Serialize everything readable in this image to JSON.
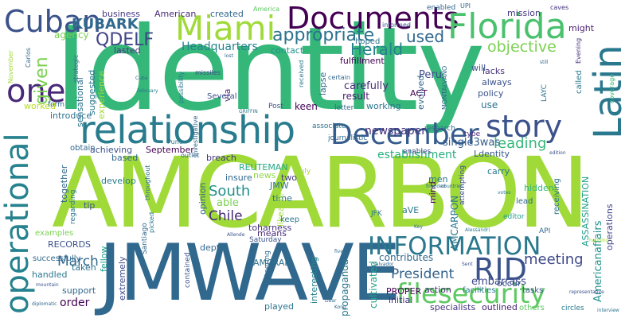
{
  "words": [
    {
      "text": "Identity",
      "color": "#35b779"
    },
    {
      "text": "AMCARBON",
      "color": "#a0da39"
    },
    {
      "text": "JMWAVE",
      "color": "#31688e"
    },
    {
      "text": "relationship",
      "color": "#287c8e"
    },
    {
      "text": "Documents",
      "color": "#440154"
    },
    {
      "text": "Florida",
      "color": "#4ac16d"
    },
    {
      "text": "Miami",
      "color": "#a0da39"
    },
    {
      "text": "Latin",
      "color": "#2a788e"
    },
    {
      "text": "December",
      "color": "#365c8d"
    },
    {
      "text": "story",
      "color": "#3b528b"
    },
    {
      "text": "operational",
      "color": "#26828e"
    },
    {
      "text": "INFORMATION",
      "color": "#2a788e"
    },
    {
      "text": "RID",
      "color": "#3b528b"
    },
    {
      "text": "filesecurity",
      "color": "#5ec962"
    },
    {
      "text": "Cuban",
      "color": "#3b528b"
    },
    {
      "text": "one",
      "color": "#482878"
    },
    {
      "text": "KUBARK",
      "color": "#31688e"
    },
    {
      "text": "QDELF",
      "color": "#414487"
    },
    {
      "text": "appropriate",
      "color": "#2c728e"
    },
    {
      "text": "used",
      "color": "#31688e"
    },
    {
      "text": "objective",
      "color": "#7ad151"
    },
    {
      "text": "Headquarters",
      "color": "#26828e"
    },
    {
      "text": "Herald",
      "color": "#26828e"
    },
    {
      "text": "given",
      "color": "#7ad151"
    },
    {
      "text": "South",
      "color": "#21918c"
    },
    {
      "text": "Chile",
      "color": "#482878"
    },
    {
      "text": "March",
      "color": "#31688e"
    },
    {
      "text": "meeting",
      "color": "#3e4989"
    },
    {
      "text": "President",
      "color": "#33638d"
    },
    {
      "text": "newspaper",
      "color": "#46327e"
    },
    {
      "text": "leading",
      "color": "#35b779"
    },
    {
      "text": "Peru",
      "color": "#3e4989"
    },
    {
      "text": "carefully",
      "color": "#472d7b"
    },
    {
      "text": "single3was",
      "color": "#355f8d"
    },
    {
      "text": "establishment",
      "color": "#29af7f"
    },
    {
      "text": "Ldentity",
      "color": "#38598c"
    },
    {
      "text": "AMCARPON",
      "color": "#2a788e"
    },
    {
      "text": "ASSASSINATION",
      "color": "#1f9e89"
    },
    {
      "text": "Americanaffairs",
      "color": "#21918c"
    },
    {
      "text": "operations",
      "color": "#414487"
    },
    {
      "text": "embarrass",
      "color": "#3e4989"
    },
    {
      "text": "contributes",
      "color": "#31688e"
    },
    {
      "text": "cultivated",
      "color": "#20a486"
    },
    {
      "text": "propaganda",
      "color": "#2a788e"
    },
    {
      "text": "REUTEMAN",
      "color": "#22a884"
    },
    {
      "text": "September",
      "color": "#440154"
    },
    {
      "text": "achieving",
      "color": "#3b528b"
    },
    {
      "text": "investigative",
      "color": "#31688e"
    },
    {
      "text": "sensational",
      "color": "#2c728e"
    },
    {
      "text": "suggested",
      "color": "#2a788e"
    },
    {
      "text": "experience",
      "color": "#a0da39"
    },
    {
      "text": "strategic",
      "color": "#31688e"
    },
    {
      "text": "agency",
      "color": "#7ad151"
    },
    {
      "text": "business",
      "color": "#443983"
    },
    {
      "text": "American",
      "color": "#482878"
    },
    {
      "text": "created",
      "color": "#31688e"
    },
    {
      "text": "enabled",
      "color": "#31688e"
    },
    {
      "text": "mission",
      "color": "#443983"
    },
    {
      "text": "caves",
      "color": "#46327e"
    },
    {
      "text": "might",
      "color": "#481f70"
    },
    {
      "text": "lasted",
      "color": "#46327e"
    },
    {
      "text": "contact",
      "color": "#21918c"
    },
    {
      "text": "fulfillment",
      "color": "#440154"
    },
    {
      "text": "hoped",
      "color": "#2c728e"
    },
    {
      "text": "will",
      "color": "#3b528b"
    },
    {
      "text": "worked",
      "color": "#b8de29"
    },
    {
      "text": "form",
      "color": "#31688e"
    },
    {
      "text": "introduce",
      "color": "#2c728e"
    },
    {
      "text": "obtain",
      "color": "#31688e"
    },
    {
      "text": "together",
      "color": "#31688e"
    },
    {
      "text": "regarding",
      "color": "#2a788e"
    },
    {
      "text": "develop",
      "color": "#287c8e"
    },
    {
      "text": "based",
      "color": "#31688e"
    },
    {
      "text": "breach",
      "color": "#46327e"
    },
    {
      "text": "news",
      "color": "#8fd744"
    },
    {
      "text": "JMW",
      "color": "#2c728e"
    },
    {
      "text": "insure",
      "color": "#31688e"
    },
    {
      "text": "two",
      "color": "#443983"
    },
    {
      "text": "time",
      "color": "#2c728e"
    },
    {
      "text": "able",
      "color": "#7ad151"
    },
    {
      "text": "opinion",
      "color": "#31688e"
    },
    {
      "text": "toharness",
      "color": "#46327e"
    },
    {
      "text": "means",
      "color": "#482878"
    },
    {
      "text": "Saturday",
      "color": "#3b528b"
    },
    {
      "text": "likeable",
      "color": "#a0da39"
    },
    {
      "text": "keep",
      "color": "#2a788e"
    },
    {
      "text": "depth",
      "color": "#31688e"
    },
    {
      "text": "AMCRAB",
      "color": "#2c728e"
    },
    {
      "text": "steering",
      "color": "#31688e"
    },
    {
      "text": "interesting",
      "color": "#26828e"
    },
    {
      "text": "played",
      "color": "#2a788e"
    },
    {
      "text": "contained",
      "color": "#38598c"
    },
    {
      "text": "fellow",
      "color": "#1f9e89"
    },
    {
      "text": "extremely",
      "color": "#3e4989"
    },
    {
      "text": "taken",
      "color": "#2c728e"
    },
    {
      "text": "handled",
      "color": "#2a788e"
    },
    {
      "text": "order",
      "color": "#440154"
    },
    {
      "text": "support",
      "color": "#31688e"
    },
    {
      "text": "RECORDS",
      "color": "#3b528b"
    },
    {
      "text": "examples",
      "color": "#7ad151"
    },
    {
      "text": "successfully",
      "color": "#31688e"
    },
    {
      "text": "tip",
      "color": "#3b528b"
    },
    {
      "text": "action",
      "color": "#482878"
    },
    {
      "text": "PROPER",
      "color": "#440154"
    },
    {
      "text": "initial",
      "color": "#46327e"
    },
    {
      "text": "facilities",
      "color": "#2a788e"
    },
    {
      "text": "tasks",
      "color": "#3b528b"
    },
    {
      "text": "specialists",
      "color": "#46327e"
    },
    {
      "text": "outlined",
      "color": "#481f70"
    },
    {
      "text": "others",
      "color": "#5ec962"
    },
    {
      "text": "circles",
      "color": "#287c8e"
    },
    {
      "text": "occur",
      "color": "#3b528b"
    },
    {
      "text": "men",
      "color": "#2c728e"
    },
    {
      "text": "mind",
      "color": "#440154"
    },
    {
      "text": "lead",
      "color": "#31688e"
    },
    {
      "text": "hidden",
      "color": "#35b779"
    },
    {
      "text": "editor",
      "color": "#1f9e89"
    },
    {
      "text": "API",
      "color": "#31688e"
    },
    {
      "text": "receiving",
      "color": "#2c728e"
    },
    {
      "text": "carry",
      "color": "#2a788e"
    },
    {
      "text": "attempting",
      "color": "#3e4989"
    },
    {
      "text": "aVE",
      "color": "#2a788e"
    },
    {
      "text": "JFK",
      "color": "#2c728e"
    },
    {
      "text": "via",
      "color": "#482878"
    },
    {
      "text": "keen",
      "color": "#440154"
    },
    {
      "text": "lapse",
      "color": "#31688e"
    },
    {
      "text": "result",
      "color": "#481f70"
    },
    {
      "text": "working",
      "color": "#2a788e"
    },
    {
      "text": "evolved",
      "color": "#31688e"
    },
    {
      "text": "policy",
      "color": "#3b528b"
    },
    {
      "text": "use",
      "color": "#2c728e"
    },
    {
      "text": "always",
      "color": "#3b528b"
    },
    {
      "text": "lacks",
      "color": "#46327e"
    },
    {
      "text": "called",
      "color": "#2a788e"
    },
    {
      "text": "ACT",
      "color": "#440154"
    },
    {
      "text": "research",
      "color": "#31688e"
    },
    {
      "text": "type",
      "color": "#482878"
    },
    {
      "text": "enables",
      "color": "#3e4989"
    },
    {
      "text": "journalistic",
      "color": "#31688e"
    },
    {
      "text": "associate",
      "color": "#2c728e"
    },
    {
      "text": "letter",
      "color": "#31688e"
    },
    {
      "text": "Post",
      "color": "#3b528b"
    },
    {
      "text": "received",
      "color": "#2a788e"
    },
    {
      "text": "certain",
      "color": "#31688e"
    },
    {
      "text": "possibility",
      "color": "#2a788e"
    },
    {
      "text": "Several",
      "color": "#3b528b"
    },
    {
      "text": "Puno",
      "color": "#2a788e"
    },
    {
      "text": "outlet",
      "color": "#31688e"
    },
    {
      "text": "throughout",
      "color": "#2c728e"
    },
    {
      "text": "picked",
      "color": "#2a788e"
    },
    {
      "text": "Santiago",
      "color": "#31688e"
    },
    {
      "text": "July",
      "color": "#a0da39"
    },
    {
      "text": "UPI",
      "color": "#31688e"
    },
    {
      "text": "informed",
      "color": "#3b528b"
    },
    {
      "text": "America",
      "color": "#5ec962"
    },
    {
      "text": "Evening",
      "color": "#46327e"
    },
    {
      "text": "MONTALVANO",
      "color": "#31688e"
    },
    {
      "text": "LAYC",
      "color": "#2c728e"
    },
    {
      "text": "Carlos",
      "color": "#31688e"
    },
    {
      "text": "November",
      "color": "#a0da39"
    },
    {
      "text": "coverage",
      "color": "#35b779"
    },
    {
      "text": "missiles",
      "color": "#3e4989"
    },
    {
      "text": "GRIFFIN",
      "color": "#2a788e"
    },
    {
      "text": "founded",
      "color": "#2c728e"
    },
    {
      "text": "countries",
      "color": "#31688e"
    },
    {
      "text": "votes",
      "color": "#2a788e"
    },
    {
      "text": "edition",
      "color": "#3b528b"
    },
    {
      "text": "Salvador",
      "color": "#31688e"
    },
    {
      "text": "representative",
      "color": "#3b528b"
    },
    {
      "text": "interview",
      "color": "#2c728e"
    },
    {
      "text": "Alessandri",
      "color": "#2a788e"
    },
    {
      "text": "diplomatic",
      "color": "#31688e"
    },
    {
      "text": "mountain",
      "color": "#3b528b"
    },
    {
      "text": "Allende",
      "color": "#3b528b"
    },
    {
      "text": "Cuba",
      "color": "#31688e"
    },
    {
      "text": "February",
      "color": "#2a788e"
    },
    {
      "text": "lost",
      "color": "#31688e"
    },
    {
      "text": "still",
      "color": "#31688e"
    },
    {
      "text": "five",
      "color": "#2c728e"
    },
    {
      "text": "Key",
      "color": "#31688e"
    },
    {
      "text": "Dear",
      "color": "#31688e"
    },
    {
      "text": "Kong",
      "color": "#31688e"
    },
    {
      "text": "hanging",
      "color": "#a0da39"
    },
    {
      "text": "Sent",
      "color": "#3b528b"
    }
  ]
}
